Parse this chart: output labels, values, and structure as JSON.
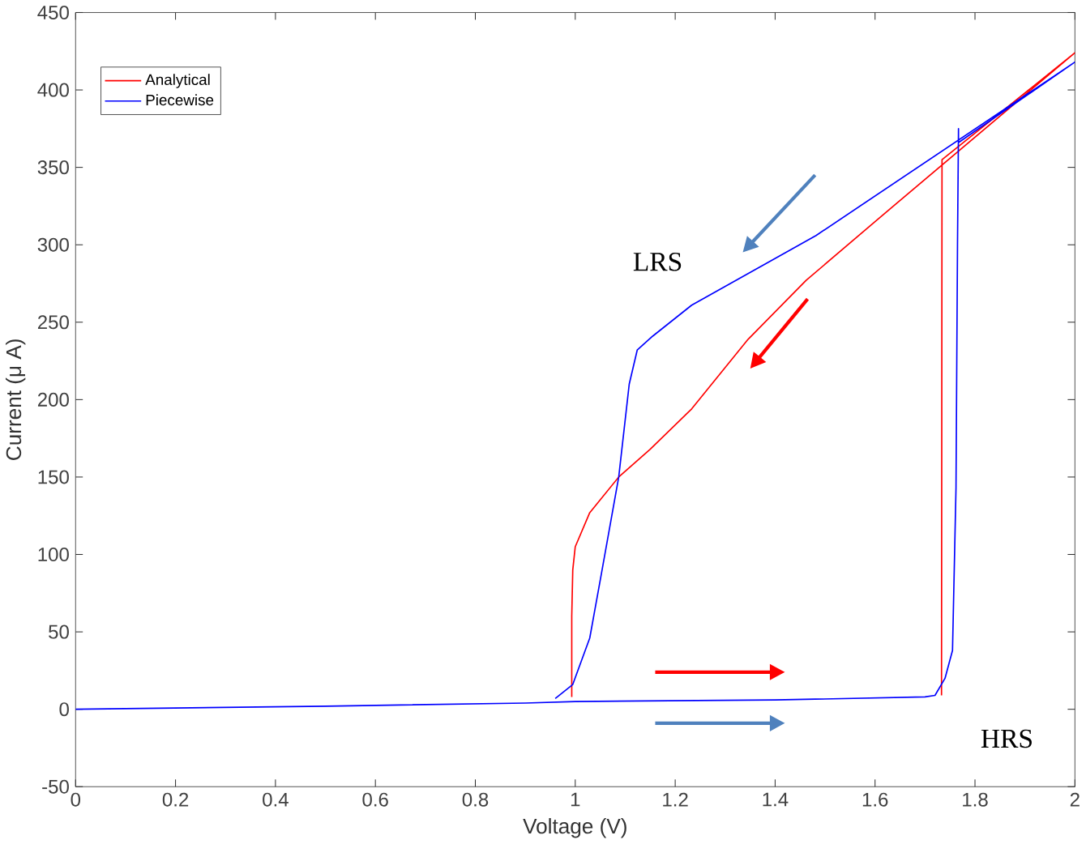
{
  "chart_data": {
    "type": "line",
    "xlabel": "Voltage (V)",
    "ylabel": "Current (μ A)",
    "xlim": [
      0,
      2
    ],
    "ylim": [
      -50,
      450
    ],
    "xticks": [
      0,
      0.2,
      0.4,
      0.6,
      0.8,
      1,
      1.2,
      1.4,
      1.6,
      1.8,
      2
    ],
    "yticks": [
      -50,
      0,
      50,
      100,
      150,
      200,
      250,
      300,
      350,
      400,
      450
    ],
    "grid": false,
    "legend": "top left",
    "marker": "none",
    "line_style": "solid",
    "annotations": [
      "LRS",
      "HRS"
    ],
    "series": [
      {
        "name": "Analytical",
        "color": "#ff0000",
        "x": [
          1.733,
          1.734,
          2,
          1.6,
          1.462,
          1.346,
          1.233,
          1.15,
          1.087,
          1.029,
          1.0,
          0.995,
          0.993,
          0.993
        ],
        "values": [
          9,
          355,
          424,
          315,
          277,
          239,
          194,
          168,
          150,
          127,
          105,
          90,
          60,
          8
        ]
      },
      {
        "name": "Piecewise",
        "color": "#0000ff",
        "x": [
          0,
          0.5,
          0.9,
          1.0,
          1.4,
          1.7,
          1.72,
          1.74,
          1.755,
          1.762,
          1.765,
          1.767,
          1.767,
          2,
          1.482,
          1.233,
          1.155,
          1.124,
          1.108,
          1.087,
          1.052,
          1.029,
          0.995,
          0.96
        ],
        "values": [
          0,
          2,
          4,
          5,
          6,
          8,
          9,
          20,
          38,
          143,
          300,
          375,
          366,
          418,
          306,
          261,
          241,
          232,
          210,
          150,
          87,
          46,
          16,
          7
        ]
      }
    ]
  }
}
